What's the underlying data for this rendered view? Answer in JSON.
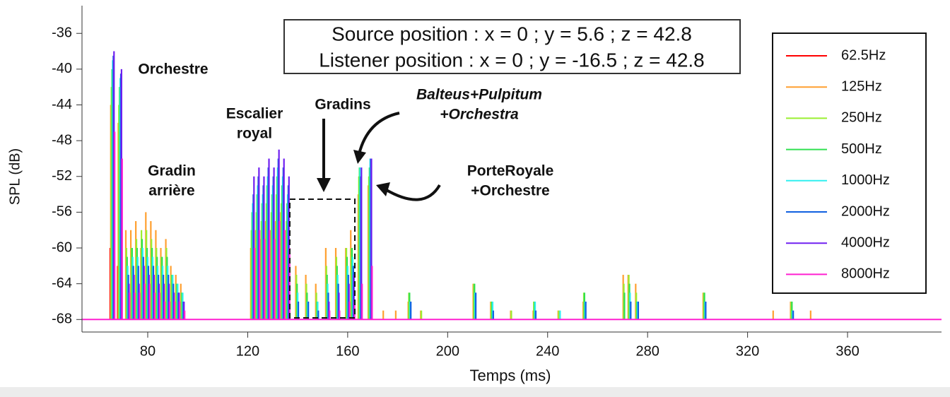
{
  "chart_data": {
    "type": "echogram",
    "xlabel": "Temps (ms)",
    "ylabel": "SPL (dB)",
    "info": [
      "Source position : x = 0 ; y = 5.6 ; z = 42.8",
      "Listener position : x = 0 ; y = -16.5 ; z = 42.8"
    ],
    "annotations": [
      [
        "Orchestre"
      ],
      [
        "Gradin",
        "arrière"
      ],
      [
        "Escalier",
        "royal"
      ],
      [
        "Gradins"
      ],
      [
        "Balteus+Pulpitum",
        "+Orchestra"
      ],
      [
        "PorteRoyale",
        "+Orchestre"
      ]
    ],
    "xlim": [
      53.7,
      397.6
    ],
    "ylim": [
      -69.4,
      -32.9
    ],
    "xticks": [
      80,
      120,
      160,
      200,
      240,
      280,
      320,
      360
    ],
    "yticks": [
      -36,
      -40,
      -44,
      -48,
      -52,
      -56,
      -60,
      -64,
      -68
    ],
    "x": [
      66,
      69,
      72,
      74,
      76,
      78,
      80,
      82,
      84,
      86,
      88,
      90,
      92,
      94,
      122,
      124,
      126,
      128,
      130,
      132,
      134,
      136,
      140,
      144,
      148,
      152,
      156,
      160,
      162,
      165,
      169,
      175,
      180,
      185,
      190,
      211,
      218,
      226,
      235,
      245,
      255,
      271,
      273,
      276,
      303,
      318,
      331,
      338,
      346
    ],
    "series": [
      {
        "name": "62.5Hz",
        "color": "#ff0000",
        "values": [
          -60,
          -62,
          null,
          null,
          null,
          null,
          null,
          null,
          null,
          null,
          null,
          null,
          null,
          null,
          null,
          null,
          null,
          null,
          null,
          null,
          null,
          null,
          null,
          null,
          null,
          null,
          null,
          null,
          null,
          null,
          null,
          null,
          null,
          null,
          null,
          null,
          null,
          null,
          null,
          null,
          null,
          null,
          null,
          null,
          null,
          null,
          null,
          null,
          null
        ]
      },
      {
        "name": "125Hz",
        "color": "#ffa030",
        "values": [
          -44,
          -46,
          -58,
          -58,
          -57,
          -60,
          -56,
          -57,
          -58,
          -60,
          -59,
          -62,
          -63,
          -64,
          -60,
          -58,
          -59,
          -57,
          -58,
          -57,
          -56,
          -58,
          -62,
          -63,
          -64,
          -60,
          -60,
          -60,
          -58,
          -54,
          -53,
          -67,
          -67,
          -66,
          -67,
          -64,
          -66,
          -67,
          -67,
          -67,
          -66,
          -63,
          -63,
          -64,
          -65,
          -68,
          -67,
          -66,
          -67
        ]
      },
      {
        "name": "250Hz",
        "color": "#9aef30",
        "values": [
          -42,
          -44,
          -60,
          -60,
          -59,
          -58,
          -58,
          -59,
          -60,
          -61,
          -60,
          -63,
          -64,
          -65,
          -58,
          -56,
          -57,
          -55,
          -56,
          -54,
          -55,
          -57,
          -63,
          -64,
          -65,
          -62,
          -61,
          -60,
          -60,
          -52,
          -52,
          -68,
          -68,
          -65,
          -67,
          -64,
          -66,
          -67,
          -66,
          -67,
          -65,
          -64,
          -63,
          -65,
          -65,
          -68,
          -68,
          -66,
          -68
        ]
      },
      {
        "name": "500Hz",
        "color": "#30e050",
        "values": [
          -40,
          -42,
          -61,
          -60,
          -60,
          -59,
          -60,
          -60,
          -61,
          -61,
          -61,
          -63,
          -64,
          -65,
          -56,
          -54,
          -55,
          -53,
          -54,
          -52,
          -53,
          -55,
          -64,
          -65,
          -66,
          -63,
          -62,
          -61,
          -60,
          -51,
          -51,
          null,
          null,
          -65,
          null,
          -64,
          -66,
          null,
          -66,
          null,
          -65,
          -65,
          -64,
          -66,
          -65,
          null,
          null,
          -66,
          null
        ]
      },
      {
        "name": "1000Hz",
        "color": "#30f0f0",
        "values": [
          -39,
          -41,
          -62,
          -61,
          -61,
          -60,
          -61,
          -61,
          -62,
          -62,
          -62,
          -63,
          -64,
          -65,
          -55,
          -53,
          -54,
          -52,
          -53,
          -51,
          -52,
          -54,
          -65,
          -66,
          -66,
          -64,
          -63,
          -62,
          -61,
          -51,
          -50,
          null,
          null,
          -66,
          null,
          -65,
          -66,
          null,
          -66,
          -67,
          -66,
          null,
          -65,
          -66,
          -66,
          null,
          null,
          -67,
          null
        ]
      },
      {
        "name": "2000Hz",
        "color": "#1060e0",
        "values": [
          -38.5,
          -40.5,
          -63,
          -62,
          -62,
          -61,
          -62,
          -62,
          -63,
          -63,
          -63,
          -64,
          -65,
          -66,
          -54,
          -52,
          -53,
          -51,
          -52,
          -50,
          -51,
          -53,
          -66,
          -66,
          -67,
          -65,
          -64,
          -63,
          -62,
          -52,
          -50,
          null,
          null,
          -66,
          null,
          -65,
          -67,
          null,
          -67,
          null,
          -66,
          null,
          -66,
          -66,
          -66,
          null,
          null,
          -67,
          null
        ]
      },
      {
        "name": "4000Hz",
        "color": "#7020f0",
        "values": [
          -38,
          -40,
          -64,
          -63,
          -64,
          -62,
          -63,
          -63,
          -64,
          -64,
          -64,
          -65,
          -65,
          -66,
          -52,
          -51,
          -52,
          -50,
          -51,
          -49,
          -50,
          -52,
          null,
          null,
          null,
          -66,
          -65,
          -64,
          -63,
          -51,
          -50,
          null,
          null,
          null,
          null,
          null,
          null,
          null,
          null,
          null,
          null,
          null,
          null,
          null,
          null,
          null,
          null,
          null,
          null
        ]
      },
      {
        "name": "8000Hz",
        "color": "#ff20d0",
        "values": [
          -47,
          -50,
          -65,
          -65,
          -65,
          -64,
          -64,
          -65,
          -65,
          -66,
          -66,
          -66,
          -66,
          -67,
          -60,
          -58,
          -59,
          -58,
          -59,
          -57,
          -58,
          -60,
          null,
          null,
          null,
          -67,
          -67,
          -66,
          -66,
          -64,
          -62,
          null,
          null,
          null,
          null,
          null,
          null,
          null,
          null,
          null,
          null,
          null,
          null,
          null,
          null,
          null,
          null,
          null,
          null
        ]
      }
    ]
  }
}
